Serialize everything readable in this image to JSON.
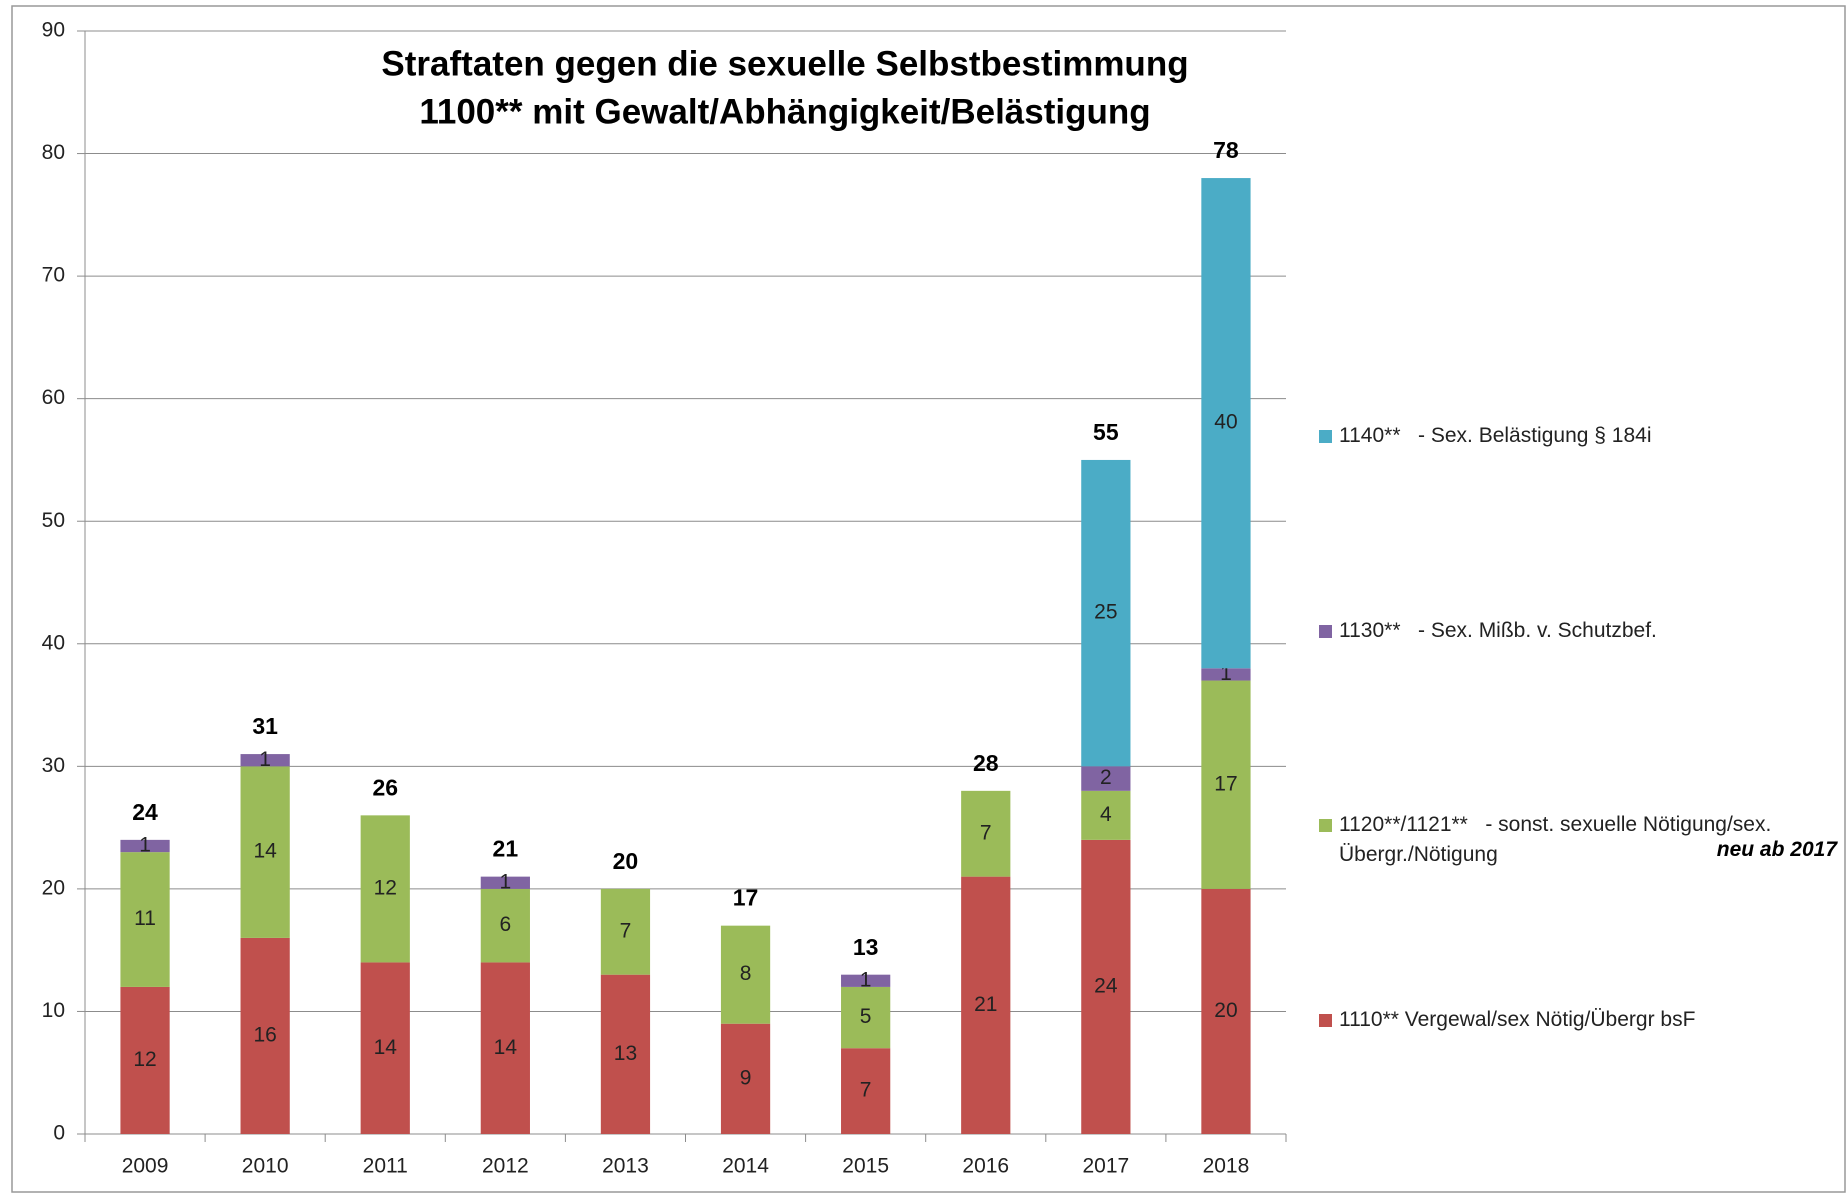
{
  "chart_data": {
    "type": "stacked_bar",
    "title": "Straftaten gegen die sexuelle Selbstbestimmung",
    "subtitle": "1100** mit Gewalt/Abhängigkeit/Belästigung",
    "categories": [
      "2009",
      "2010",
      "2011",
      "2012",
      "2013",
      "2014",
      "2015",
      "2016",
      "2017",
      "2018"
    ],
    "series": [
      {
        "name": "1110** Vergewal/sex Nötig/Übergr bsF",
        "color": "#c0504d",
        "values": [
          12,
          16,
          14,
          14,
          13,
          9,
          7,
          21,
          24,
          20
        ]
      },
      {
        "name": "1120**/1121**   - sonst. sexuelle Nötigung/sex. Übergr./Nötigung",
        "color": "#9bbb59",
        "values": [
          11,
          14,
          12,
          6,
          7,
          8,
          5,
          7,
          4,
          17
        ]
      },
      {
        "name": "1130**   - Sex. Mißb. v. Schutzbef.",
        "color": "#8064a2",
        "values": [
          1,
          1,
          null,
          1,
          null,
          null,
          1,
          null,
          2,
          1
        ]
      },
      {
        "name": "1140**   - Sex. Belästigung § 184i",
        "color": "#4bacc6",
        "values": [
          null,
          null,
          null,
          null,
          null,
          null,
          null,
          null,
          25,
          40
        ]
      }
    ],
    "totals": [
      24,
      31,
      26,
      21,
      20,
      17,
      13,
      28,
      55,
      78
    ],
    "annotation": "neu ab 2017",
    "ylim": [
      0,
      90
    ],
    "yticks": [
      0,
      10,
      20,
      30,
      40,
      50,
      60,
      70,
      80,
      90
    ],
    "grid": true,
    "legend": "right"
  }
}
